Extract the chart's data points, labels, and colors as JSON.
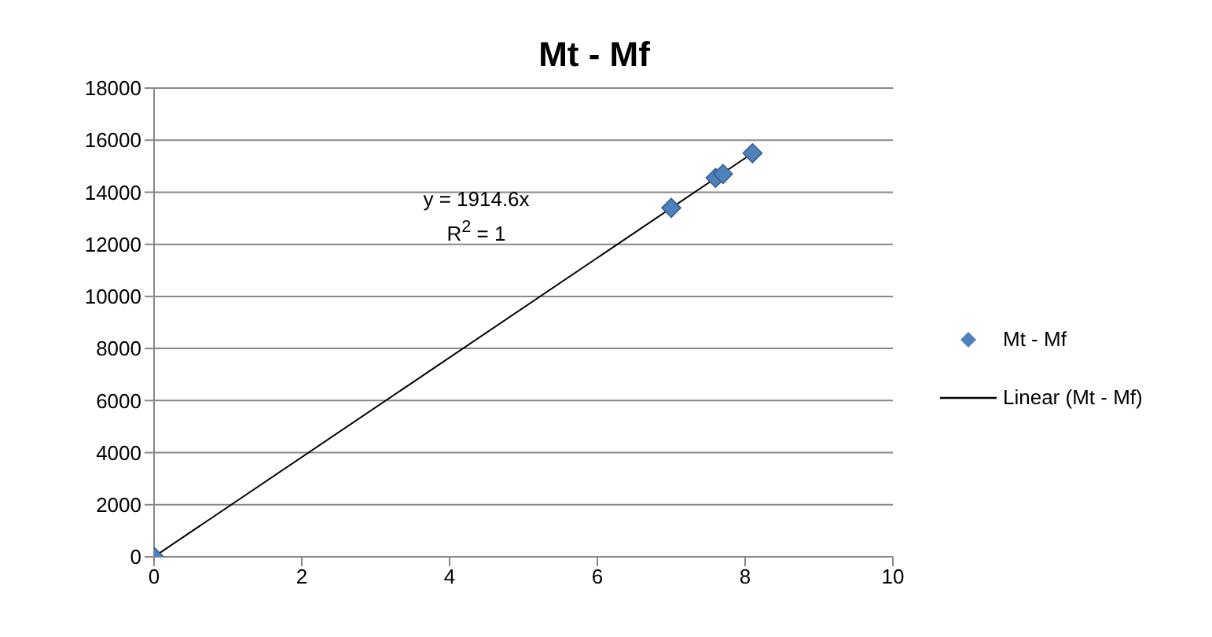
{
  "chart_data": {
    "type": "scatter",
    "title": "Mt - Mf",
    "series": [
      {
        "name": "Mt - Mf",
        "color": "#4f81bd",
        "marker": "diamond",
        "x": [
          0,
          7.0,
          7.6,
          7.7,
          8.1
        ],
        "values": [
          0,
          13400,
          14550,
          14700,
          15500
        ]
      },
      {
        "name": "Linear (Mt - Mf)",
        "type": "line",
        "color": "#000000",
        "marker": "none",
        "line_style": "solid",
        "x": [
          0,
          8.1
        ],
        "values": [
          0,
          15500
        ]
      }
    ],
    "annotations": [
      "y = 1914.6x",
      "R$^{2}$ = 1"
    ],
    "xlim": [
      0,
      10
    ],
    "xticks": [
      0,
      2,
      4,
      6,
      8,
      10
    ],
    "ylim": [
      0,
      18000
    ],
    "yticks": [
      0,
      2000,
      4000,
      6000,
      8000,
      10000,
      12000,
      14000,
      16000,
      18000
    ],
    "grid": "y",
    "legend": "right"
  }
}
